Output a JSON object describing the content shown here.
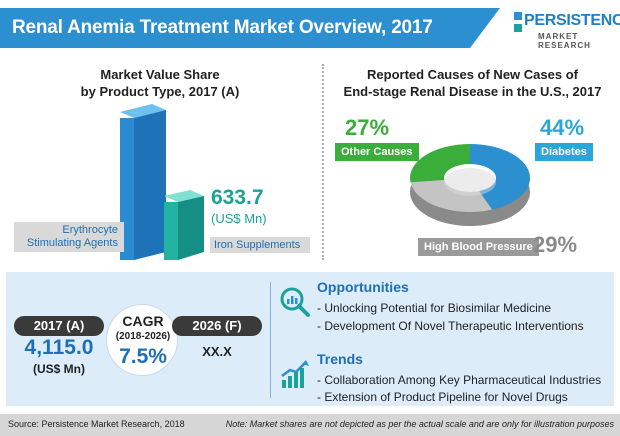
{
  "header": {
    "title": "Renal Anemia Treatment Market Overview, 2017",
    "logo_main": "PERSISTENCE",
    "logo_sub": "MARKET RESEARCH"
  },
  "left_chart": {
    "title_line1": "Market Value Share",
    "title_line2": "by Product Type, 2017 (A)",
    "erythropoiesis_label_line1": "Erythrocyte",
    "erythropoiesis_label_line2": "Stimulating Agents",
    "iron_label": "Iron Supplements",
    "iron_value": "633.7",
    "iron_unit": "(US$ Mn)"
  },
  "right_chart": {
    "title_line1": "Reported Causes of New Cases of",
    "title_line2": "End-stage Renal Disease in the U.S., 2017",
    "other_pct": "27%",
    "other_label": "Other Causes",
    "diabetes_pct": "44%",
    "diabetes_label": "Diabetes",
    "hbp_pct": "29%",
    "hbp_label": "High Blood Pressure"
  },
  "chart_data": [
    {
      "type": "bar",
      "categories": [
        "Erythrocyte Stimulating Agents",
        "Iron Supplements"
      ],
      "values": [
        null,
        633.7
      ],
      "title": "Market Value Share by Product Type, 2017 (A)",
      "unit": "(US$ Mn)"
    },
    {
      "type": "pie",
      "title": "Reported Causes of New Cases of End-stage Renal Disease in the U.S., 2017",
      "categories": [
        "Diabetes",
        "High Blood Pressure",
        "Other Causes"
      ],
      "values": [
        44,
        29,
        27
      ]
    }
  ],
  "stats": {
    "year_2017_tag": "2017 (A)",
    "value_2017": "4,115.0",
    "unit": "(US$ Mn)",
    "cagr_title": "CAGR",
    "cagr_range": "(2018-2026)",
    "cagr_value": "7.5%",
    "year_2026_tag": "2026 (F)",
    "value_2026": "XX.X"
  },
  "opportunities": {
    "title": "Opportunities",
    "items": [
      "- Unlocking Potential for Biosimilar Medicine",
      "- Development Of Novel Therapeutic Interventions"
    ]
  },
  "trends": {
    "title": "Trends",
    "items": [
      "- Collaboration Among Key Pharmaceutical Industries",
      "- Extension of Product Pipeline for Novel Drugs"
    ]
  },
  "footer": {
    "source": "Source: Persistence Market Research, 2018",
    "note": "Note: Market shares are not depicted as per the actual scale and are only for illustration purposes"
  },
  "colors": {
    "blue": "#2c8fd0",
    "teal": "#1aa39a",
    "green": "#3aad3a",
    "gray": "#9a9a9a"
  },
  "icons": {
    "opportunities": "magnifier-chart-icon",
    "trends": "rising-chart-icon"
  }
}
